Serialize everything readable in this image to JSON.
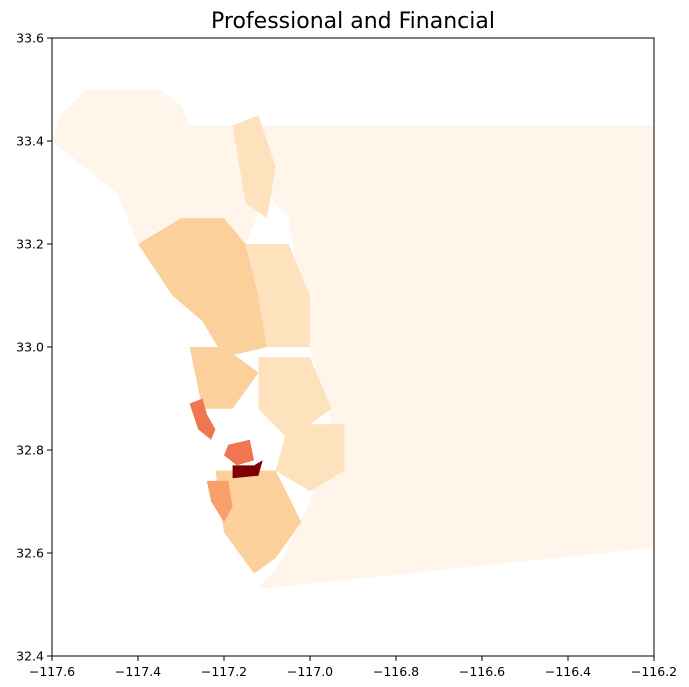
{
  "title": "Professional and Financial",
  "chart_data": {
    "type": "choropleth",
    "title": "Professional and Financial",
    "xlim": [
      -117.6,
      -116.2
    ],
    "ylim": [
      32.4,
      33.6
    ],
    "x_ticks": [
      -117.6,
      -117.4,
      -117.2,
      -117.0,
      -116.8,
      -116.6,
      -116.4,
      -116.2
    ],
    "x_tick_labels": [
      "−117.6",
      "−117.4",
      "−117.2",
      "−117.0",
      "−116.8",
      "−116.6",
      "−116.4",
      "−116.2"
    ],
    "y_ticks": [
      32.4,
      32.6,
      32.8,
      33.0,
      33.2,
      33.4,
      33.6
    ],
    "y_tick_labels": [
      "32.4",
      "32.6",
      "32.8",
      "33.0",
      "33.2",
      "33.4",
      "33.6"
    ],
    "colormap": "OrRd",
    "grid": false,
    "legend": false,
    "colors": {
      "lowest": "#fff5ea",
      "low": "#fde2bd",
      "mid_low": "#fbd09b",
      "mid": "#f8a06b",
      "mid_high": "#ef7650",
      "highest": "#7f0000"
    },
    "regions": [
      {
        "id": "county-east-background",
        "level": 0.03,
        "lon_lat": [
          [
            -117.28,
            33.43
          ],
          [
            -116.2,
            33.43
          ],
          [
            -116.2,
            32.61
          ],
          [
            -117.12,
            32.53
          ],
          [
            -117.07,
            32.58
          ],
          [
            -117.0,
            32.7
          ],
          [
            -116.95,
            32.85
          ],
          [
            -117.0,
            33.0
          ],
          [
            -117.05,
            33.25
          ],
          [
            -117.2,
            33.4
          ]
        ]
      },
      {
        "id": "county-north-background",
        "level": 0.02,
        "lon_lat": [
          [
            -117.6,
            33.4
          ],
          [
            -117.58,
            33.45
          ],
          [
            -117.52,
            33.5
          ],
          [
            -117.35,
            33.5
          ],
          [
            -117.3,
            33.47
          ],
          [
            -117.28,
            33.43
          ],
          [
            -117.2,
            33.4
          ],
          [
            -117.1,
            33.3
          ],
          [
            -117.15,
            33.2
          ],
          [
            -117.25,
            33.2
          ],
          [
            -117.4,
            33.2
          ],
          [
            -117.45,
            33.3
          ]
        ]
      },
      {
        "id": "coastal-north-tracts",
        "level": 0.12,
        "lon_lat": [
          [
            -117.4,
            33.2
          ],
          [
            -117.3,
            33.25
          ],
          [
            -117.2,
            33.25
          ],
          [
            -117.15,
            33.2
          ],
          [
            -117.12,
            33.1
          ],
          [
            -117.1,
            33.0
          ],
          [
            -117.2,
            32.98
          ],
          [
            -117.25,
            33.05
          ],
          [
            -117.32,
            33.1
          ]
        ]
      },
      {
        "id": "inland-north-tracts",
        "level": 0.1,
        "lon_lat": [
          [
            -117.15,
            33.2
          ],
          [
            -117.05,
            33.2
          ],
          [
            -117.0,
            33.1
          ],
          [
            -117.0,
            33.0
          ],
          [
            -117.1,
            33.0
          ],
          [
            -117.12,
            33.1
          ]
        ]
      },
      {
        "id": "valley-center-tracts",
        "level": 0.08,
        "lon_lat": [
          [
            -117.18,
            33.43
          ],
          [
            -117.12,
            33.45
          ],
          [
            -117.08,
            33.35
          ],
          [
            -117.1,
            33.25
          ],
          [
            -117.15,
            33.28
          ]
        ]
      },
      {
        "id": "coastal-mid-tracts",
        "level": 0.14,
        "lon_lat": [
          [
            -117.28,
            33.0
          ],
          [
            -117.2,
            33.0
          ],
          [
            -117.12,
            32.95
          ],
          [
            -117.18,
            32.88
          ],
          [
            -117.25,
            32.88
          ]
        ]
      },
      {
        "id": "inland-mid-tracts",
        "level": 0.1,
        "lon_lat": [
          [
            -117.12,
            32.98
          ],
          [
            -117.0,
            32.98
          ],
          [
            -116.95,
            32.88
          ],
          [
            -117.05,
            32.82
          ],
          [
            -117.12,
            32.88
          ]
        ]
      },
      {
        "id": "east-county-tracts",
        "level": 0.1,
        "lon_lat": [
          [
            -117.05,
            32.85
          ],
          [
            -116.92,
            32.85
          ],
          [
            -116.92,
            32.76
          ],
          [
            -117.0,
            32.72
          ],
          [
            -117.08,
            32.76
          ]
        ]
      },
      {
        "id": "south-county-tracts",
        "level": 0.12,
        "lon_lat": [
          [
            -117.22,
            32.76
          ],
          [
            -117.08,
            32.76
          ],
          [
            -117.02,
            32.66
          ],
          [
            -117.08,
            32.59
          ],
          [
            -117.13,
            32.56
          ],
          [
            -117.2,
            32.64
          ]
        ]
      },
      {
        "id": "la-jolla-tracts",
        "level": 0.55,
        "lon_lat": [
          [
            -117.28,
            32.89
          ],
          [
            -117.25,
            32.9
          ],
          [
            -117.24,
            32.87
          ],
          [
            -117.22,
            32.84
          ],
          [
            -117.23,
            32.82
          ],
          [
            -117.26,
            32.84
          ]
        ]
      },
      {
        "id": "mission-hills-tracts",
        "level": 0.6,
        "lon_lat": [
          [
            -117.19,
            32.81
          ],
          [
            -117.14,
            32.82
          ],
          [
            -117.13,
            32.78
          ],
          [
            -117.17,
            32.77
          ],
          [
            -117.2,
            32.79
          ]
        ]
      },
      {
        "id": "point-loma-tracts",
        "level": 0.45,
        "lon_lat": [
          [
            -117.24,
            32.74
          ],
          [
            -117.19,
            32.74
          ],
          [
            -117.18,
            32.69
          ],
          [
            -117.2,
            32.66
          ],
          [
            -117.23,
            32.7
          ]
        ]
      },
      {
        "id": "downtown-tracts",
        "level": 1.0,
        "lon_lat": [
          [
            -117.18,
            32.77
          ],
          [
            -117.13,
            32.77
          ],
          [
            -117.11,
            32.78
          ],
          [
            -117.12,
            32.75
          ],
          [
            -117.18,
            32.745
          ]
        ]
      }
    ]
  }
}
